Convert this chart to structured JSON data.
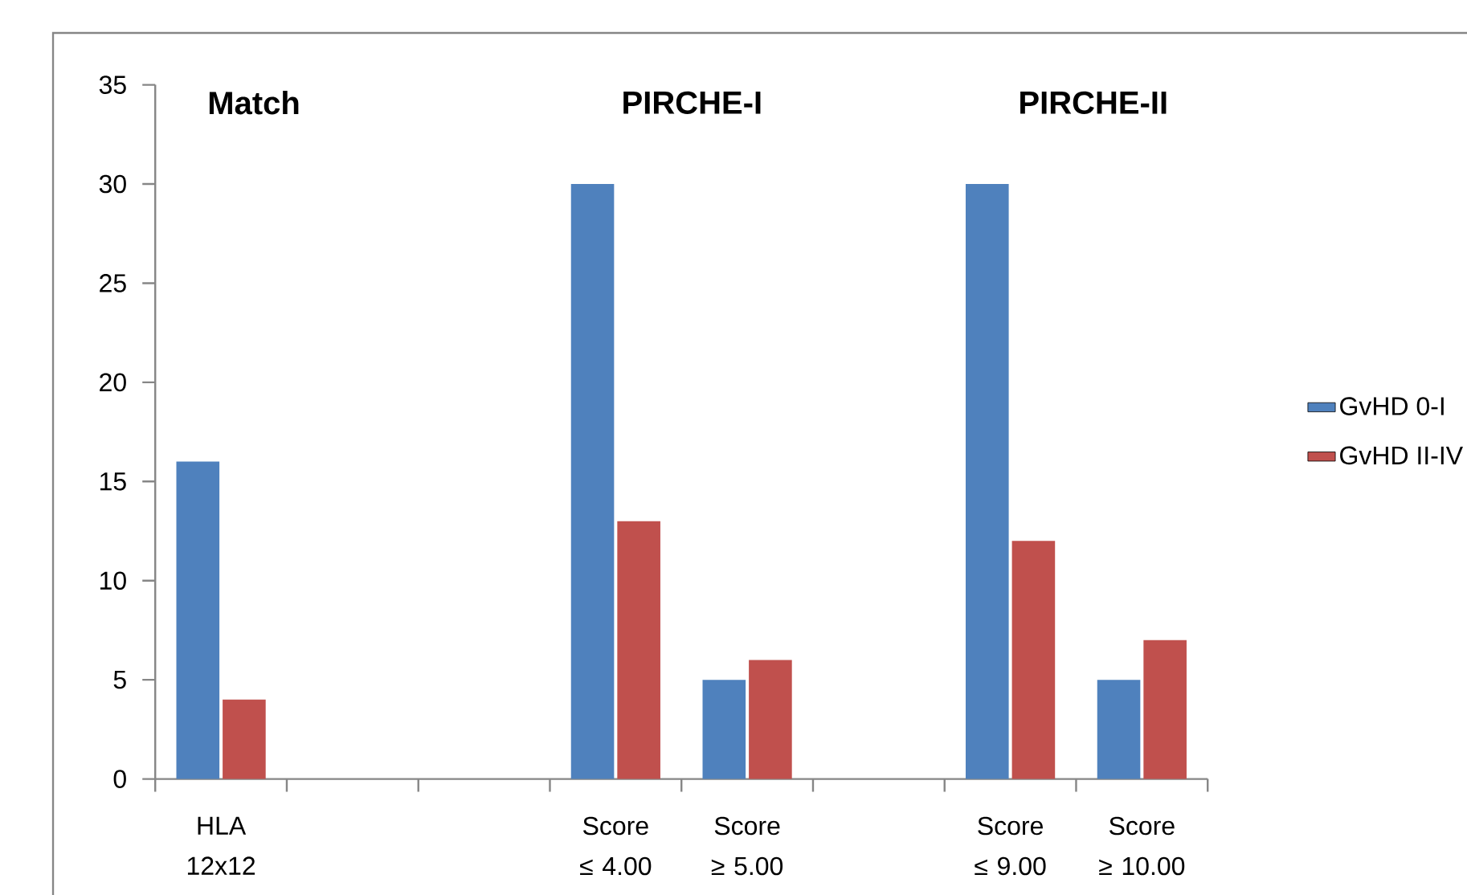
{
  "chart_data": {
    "type": "bar",
    "categories": [
      "HLA 12x12",
      null,
      null,
      "Score ≤ 4.00",
      "Score ≥ 5.00",
      null,
      "Score ≤ 9.00",
      "Score ≥ 10.00"
    ],
    "series": [
      {
        "name": "GvHD 0-I",
        "color": "#4f81bd",
        "values": [
          16,
          null,
          null,
          30,
          5,
          null,
          30,
          5
        ]
      },
      {
        "name": "GvHD II-IV",
        "color": "#c0504d",
        "values": [
          4,
          null,
          null,
          13,
          6,
          null,
          12,
          7
        ]
      }
    ],
    "ylim": [
      0,
      35
    ],
    "yticks": [
      0,
      5,
      10,
      15,
      20,
      25,
      30,
      35
    ],
    "annotations": [
      "Match",
      "PIRCHE-I",
      "PIRCHE-II"
    ],
    "grid": false,
    "legend": "right"
  }
}
